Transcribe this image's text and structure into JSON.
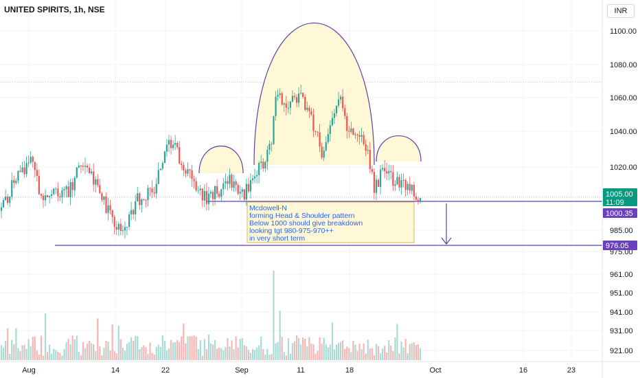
{
  "header": {
    "title": "UNITED SPIRITS, 1h, NSE"
  },
  "currency_button": "INR",
  "annotation": {
    "lines": [
      "Mcdowell-N",
      "forming Head & Shoulder pattern",
      "Below 1000 should give breakdown",
      "looking tgt 980-975-970++",
      "in very short term"
    ]
  },
  "price_badges": {
    "last_price": "1005.00",
    "countdown": "11:09",
    "level_1": "1000.35",
    "level_2": "976.05"
  },
  "colors": {
    "up": "#26a69a",
    "down": "#ef5350",
    "shape": "#5b3fb0",
    "shape_fill": "#fff8d6",
    "annotation_border": "#d9b94f",
    "annotation_text": "#2962ff",
    "last_badge": "#089981",
    "level_badge": "#6a3fc0"
  },
  "chart_data": {
    "type": "candlestick",
    "title": "UNITED SPIRITS, 1h, NSE",
    "y_axis_ticks": [
      "1100.00",
      "1080.00",
      "1060.00",
      "1040.00",
      "1020.00",
      "985.00",
      "975.00",
      "961.00",
      "951.00",
      "941.00",
      "931.00",
      "921.00"
    ],
    "x_axis_ticks": [
      "Aug",
      "14",
      "22",
      "Sep",
      "11",
      "18",
      "Oct",
      "16",
      "23"
    ],
    "price_range": [
      975,
      1105
    ],
    "horizontal_levels": [
      1073,
      1000.35,
      976.05
    ],
    "head_and_shoulders": {
      "left_shoulder_peak": 1030,
      "head_peak": 1103,
      "right_shoulder_peak": 1036,
      "neckline": 1000.35
    },
    "target_level": 976.05,
    "last_price": 1005.0,
    "grid": true
  }
}
